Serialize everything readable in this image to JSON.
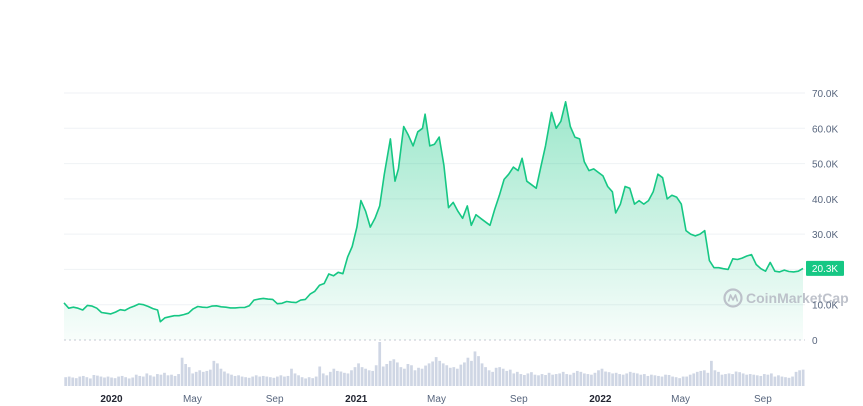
{
  "chart_data": {
    "type": "area",
    "price_series": [
      [
        "2019-10-22",
        10.5
      ],
      [
        "2019-10-29",
        9.0
      ],
      [
        "2019-11-05",
        9.3
      ],
      [
        "2019-11-12",
        9.0
      ],
      [
        "2019-11-19",
        8.5
      ],
      [
        "2019-11-26",
        9.8
      ],
      [
        "2019-12-03",
        9.6
      ],
      [
        "2019-12-10",
        9.0
      ],
      [
        "2019-12-17",
        7.8
      ],
      [
        "2019-12-24",
        7.6
      ],
      [
        "2019-12-31",
        7.4
      ],
      [
        "2020-01-07",
        7.9
      ],
      [
        "2020-01-14",
        8.6
      ],
      [
        "2020-01-21",
        8.4
      ],
      [
        "2020-01-28",
        9.1
      ],
      [
        "2020-02-04",
        9.6
      ],
      [
        "2020-02-11",
        10.2
      ],
      [
        "2020-02-18",
        10.0
      ],
      [
        "2020-02-25",
        9.5
      ],
      [
        "2020-03-03",
        8.9
      ],
      [
        "2020-03-10",
        8.5
      ],
      [
        "2020-03-14",
        5.2
      ],
      [
        "2020-03-21",
        6.3
      ],
      [
        "2020-03-28",
        6.6
      ],
      [
        "2020-04-04",
        6.9
      ],
      [
        "2020-04-11",
        6.9
      ],
      [
        "2020-04-18",
        7.2
      ],
      [
        "2020-04-25",
        7.6
      ],
      [
        "2020-05-02",
        8.8
      ],
      [
        "2020-05-09",
        9.5
      ],
      [
        "2020-05-16",
        9.3
      ],
      [
        "2020-05-23",
        9.2
      ],
      [
        "2020-05-30",
        9.6
      ],
      [
        "2020-06-06",
        9.7
      ],
      [
        "2020-06-13",
        9.4
      ],
      [
        "2020-06-20",
        9.3
      ],
      [
        "2020-06-27",
        9.1
      ],
      [
        "2020-07-04",
        9.1
      ],
      [
        "2020-07-11",
        9.2
      ],
      [
        "2020-07-18",
        9.2
      ],
      [
        "2020-07-25",
        9.7
      ],
      [
        "2020-08-01",
        11.3
      ],
      [
        "2020-08-08",
        11.6
      ],
      [
        "2020-08-15",
        11.8
      ],
      [
        "2020-08-22",
        11.6
      ],
      [
        "2020-08-29",
        11.5
      ],
      [
        "2020-09-05",
        10.3
      ],
      [
        "2020-09-12",
        10.4
      ],
      [
        "2020-09-19",
        10.9
      ],
      [
        "2020-09-26",
        10.7
      ],
      [
        "2020-10-03",
        10.6
      ],
      [
        "2020-10-10",
        11.3
      ],
      [
        "2020-10-17",
        11.5
      ],
      [
        "2020-10-24",
        13.0
      ],
      [
        "2020-10-31",
        13.8
      ],
      [
        "2020-11-07",
        15.5
      ],
      [
        "2020-11-14",
        16.0
      ],
      [
        "2020-11-21",
        18.7
      ],
      [
        "2020-11-28",
        18.2
      ],
      [
        "2020-12-05",
        19.2
      ],
      [
        "2020-12-12",
        18.8
      ],
      [
        "2020-12-19",
        23.5
      ],
      [
        "2020-12-26",
        26.5
      ],
      [
        "2021-01-02",
        32.0
      ],
      [
        "2021-01-08",
        39.5
      ],
      [
        "2021-01-15",
        36.5
      ],
      [
        "2021-01-22",
        32.0
      ],
      [
        "2021-01-29",
        34.5
      ],
      [
        "2021-02-05",
        38.0
      ],
      [
        "2021-02-12",
        47.0
      ],
      [
        "2021-02-21",
        57.0
      ],
      [
        "2021-02-28",
        45.0
      ],
      [
        "2021-03-05",
        48.5
      ],
      [
        "2021-03-13",
        60.5
      ],
      [
        "2021-03-20",
        58.0
      ],
      [
        "2021-03-27",
        55.0
      ],
      [
        "2021-04-03",
        59.0
      ],
      [
        "2021-04-10",
        60.0
      ],
      [
        "2021-04-14",
        64.0
      ],
      [
        "2021-04-21",
        55.0
      ],
      [
        "2021-04-28",
        55.5
      ],
      [
        "2021-05-05",
        57.5
      ],
      [
        "2021-05-12",
        49.5
      ],
      [
        "2021-05-19",
        37.5
      ],
      [
        "2021-05-26",
        39.0
      ],
      [
        "2021-06-02",
        36.5
      ],
      [
        "2021-06-09",
        34.5
      ],
      [
        "2021-06-16",
        38.0
      ],
      [
        "2021-06-22",
        32.5
      ],
      [
        "2021-06-29",
        35.5
      ],
      [
        "2021-07-06",
        34.5
      ],
      [
        "2021-07-13",
        33.5
      ],
      [
        "2021-07-20",
        32.5
      ],
      [
        "2021-07-27",
        37.0
      ],
      [
        "2021-08-03",
        41.0
      ],
      [
        "2021-08-10",
        45.5
      ],
      [
        "2021-08-17",
        47.0
      ],
      [
        "2021-08-24",
        49.0
      ],
      [
        "2021-08-31",
        48.0
      ],
      [
        "2021-09-06",
        51.5
      ],
      [
        "2021-09-13",
        45.0
      ],
      [
        "2021-09-20",
        44.0
      ],
      [
        "2021-09-27",
        43.0
      ],
      [
        "2021-10-04",
        49.0
      ],
      [
        "2021-10-11",
        55.0
      ],
      [
        "2021-10-20",
        64.5
      ],
      [
        "2021-10-27",
        60.0
      ],
      [
        "2021-11-03",
        62.0
      ],
      [
        "2021-11-10",
        67.5
      ],
      [
        "2021-11-17",
        60.5
      ],
      [
        "2021-11-24",
        57.5
      ],
      [
        "2021-12-01",
        57.0
      ],
      [
        "2021-12-08",
        50.5
      ],
      [
        "2021-12-15",
        48.0
      ],
      [
        "2021-12-22",
        48.5
      ],
      [
        "2021-12-29",
        47.5
      ],
      [
        "2022-01-05",
        46.5
      ],
      [
        "2022-01-12",
        43.5
      ],
      [
        "2022-01-19",
        42.0
      ],
      [
        "2022-01-24",
        36.0
      ],
      [
        "2022-01-31",
        38.5
      ],
      [
        "2022-02-07",
        43.5
      ],
      [
        "2022-02-14",
        43.0
      ],
      [
        "2022-02-21",
        38.5
      ],
      [
        "2022-02-28",
        39.5
      ],
      [
        "2022-03-07",
        38.5
      ],
      [
        "2022-03-14",
        39.5
      ],
      [
        "2022-03-21",
        42.0
      ],
      [
        "2022-03-28",
        47.0
      ],
      [
        "2022-04-04",
        46.0
      ],
      [
        "2022-04-11",
        40.0
      ],
      [
        "2022-04-18",
        41.0
      ],
      [
        "2022-04-25",
        40.5
      ],
      [
        "2022-05-02",
        38.5
      ],
      [
        "2022-05-09",
        31.0
      ],
      [
        "2022-05-16",
        30.0
      ],
      [
        "2022-05-23",
        29.5
      ],
      [
        "2022-05-30",
        30.0
      ],
      [
        "2022-06-06",
        31.0
      ],
      [
        "2022-06-13",
        22.5
      ],
      [
        "2022-06-20",
        20.5
      ],
      [
        "2022-06-27",
        20.5
      ],
      [
        "2022-07-04",
        20.2
      ],
      [
        "2022-07-11",
        20.0
      ],
      [
        "2022-07-18",
        23.0
      ],
      [
        "2022-07-25",
        22.8
      ],
      [
        "2022-08-01",
        23.2
      ],
      [
        "2022-08-08",
        23.8
      ],
      [
        "2022-08-15",
        24.2
      ],
      [
        "2022-08-22",
        21.4
      ],
      [
        "2022-08-29",
        20.2
      ],
      [
        "2022-09-05",
        19.5
      ],
      [
        "2022-09-12",
        22.0
      ],
      [
        "2022-09-19",
        19.5
      ],
      [
        "2022-09-26",
        19.3
      ],
      [
        "2022-10-03",
        19.8
      ],
      [
        "2022-10-10",
        19.4
      ],
      [
        "2022-10-17",
        19.3
      ],
      [
        "2022-10-24",
        19.5
      ],
      [
        "2022-10-31",
        20.3
      ]
    ],
    "volume_relative": [
      0.28,
      0.3,
      0.27,
      0.25,
      0.3,
      0.32,
      0.28,
      0.24,
      0.35,
      0.33,
      0.3,
      0.27,
      0.3,
      0.27,
      0.25,
      0.3,
      0.32,
      0.28,
      0.24,
      0.27,
      0.36,
      0.32,
      0.3,
      0.4,
      0.34,
      0.3,
      0.38,
      0.36,
      0.42,
      0.34,
      0.36,
      0.32,
      0.38,
      0.9,
      0.7,
      0.6,
      0.4,
      0.45,
      0.5,
      0.45,
      0.48,
      0.52,
      0.8,
      0.72,
      0.55,
      0.46,
      0.4,
      0.36,
      0.32,
      0.34,
      0.3,
      0.28,
      0.26,
      0.3,
      0.34,
      0.3,
      0.32,
      0.3,
      0.28,
      0.26,
      0.3,
      0.34,
      0.3,
      0.32,
      0.55,
      0.4,
      0.34,
      0.28,
      0.24,
      0.28,
      0.25,
      0.3,
      0.62,
      0.4,
      0.34,
      0.45,
      0.55,
      0.48,
      0.46,
      0.42,
      0.4,
      0.5,
      0.6,
      0.72,
      0.6,
      0.55,
      0.5,
      0.48,
      0.66,
      1.4,
      0.62,
      0.7,
      0.8,
      0.85,
      0.75,
      0.6,
      0.55,
      0.7,
      0.66,
      0.5,
      0.58,
      0.55,
      0.65,
      0.72,
      0.78,
      0.92,
      0.8,
      0.72,
      0.66,
      0.58,
      0.6,
      0.55,
      0.68,
      0.75,
      0.9,
      0.8,
      1.1,
      0.95,
      0.72,
      0.6,
      0.5,
      0.45,
      0.58,
      0.6,
      0.55,
      0.48,
      0.52,
      0.4,
      0.45,
      0.38,
      0.35,
      0.4,
      0.44,
      0.36,
      0.34,
      0.38,
      0.35,
      0.42,
      0.36,
      0.38,
      0.4,
      0.45,
      0.38,
      0.36,
      0.42,
      0.48,
      0.45,
      0.4,
      0.38,
      0.36,
      0.42,
      0.5,
      0.55,
      0.46,
      0.44,
      0.4,
      0.42,
      0.38,
      0.36,
      0.4,
      0.45,
      0.42,
      0.4,
      0.36,
      0.38,
      0.32,
      0.36,
      0.34,
      0.32,
      0.3,
      0.36,
      0.35,
      0.3,
      0.28,
      0.25,
      0.3,
      0.3,
      0.36,
      0.4,
      0.45,
      0.48,
      0.5,
      0.42,
      0.8,
      0.5,
      0.45,
      0.36,
      0.38,
      0.4,
      0.38,
      0.46,
      0.44,
      0.4,
      0.36,
      0.38,
      0.36,
      0.34,
      0.32,
      0.38,
      0.36,
      0.4,
      0.3,
      0.34,
      0.3,
      0.28,
      0.26,
      0.3,
      0.45,
      0.5,
      0.52
    ],
    "y_ticks": [
      "70.0K",
      "60.0K",
      "50.0K",
      "40.0K",
      "30.0K",
      "20.0K",
      "10.0K",
      "0"
    ],
    "y_tick_values": [
      70,
      60,
      50,
      40,
      30,
      20,
      10,
      0
    ],
    "ylim": [
      0,
      70
    ],
    "x_ticks": [
      {
        "label": "2020",
        "date": "2020-01-01",
        "bold": true
      },
      {
        "label": "May",
        "date": "2020-05-01",
        "bold": false
      },
      {
        "label": "Sep",
        "date": "2020-09-01",
        "bold": false
      },
      {
        "label": "2021",
        "date": "2021-01-01",
        "bold": true
      },
      {
        "label": "May",
        "date": "2021-05-01",
        "bold": false
      },
      {
        "label": "Sep",
        "date": "2021-09-01",
        "bold": false
      },
      {
        "label": "2022",
        "date": "2022-01-01",
        "bold": true
      },
      {
        "label": "May",
        "date": "2022-05-01",
        "bold": false
      },
      {
        "label": "Sep",
        "date": "2022-09-01",
        "bold": false
      }
    ],
    "xlim": [
      "2019-10-22",
      "2022-11-03"
    ],
    "current_price_label": "20.3K",
    "grid": true,
    "line_color": "#16c784",
    "volume_color": "#cfd6e4"
  },
  "watermark": "CoinMarketCap"
}
